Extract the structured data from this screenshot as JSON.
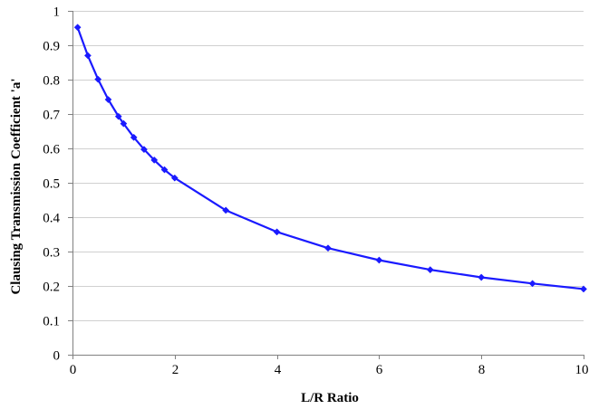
{
  "chart_data": {
    "type": "line",
    "title": "",
    "xlabel": "L/R Ratio",
    "ylabel": "Clausing Transmission Coefficient 'a'",
    "xlim": [
      0,
      10
    ],
    "ylim": [
      0,
      1
    ],
    "xticks": [
      0,
      2,
      4,
      6,
      8,
      10
    ],
    "xtick_labels": [
      "0",
      "2",
      "4",
      "6",
      "8",
      "10"
    ],
    "yticks": [
      0,
      0.1,
      0.2,
      0.3,
      0.4,
      0.5,
      0.6,
      0.7,
      0.8,
      0.9,
      1
    ],
    "ytick_labels": [
      "0",
      "0.1",
      "0.2",
      "0.3",
      "0.4",
      "0.5",
      "0.6",
      "0.7",
      "0.8",
      "0.9",
      "1"
    ],
    "grid": "horizontal",
    "legend": "none",
    "series": [
      {
        "color": "#1a1aff",
        "marker": "diamond",
        "x": [
          0.1,
          0.3,
          0.5,
          0.7,
          0.9,
          1.0,
          1.2,
          1.4,
          1.6,
          1.8,
          2.0,
          3.0,
          4.0,
          5.0,
          6.0,
          7.0,
          8.0,
          9.0,
          10.0
        ],
        "y": [
          0.952,
          0.87,
          0.801,
          0.742,
          0.693,
          0.672,
          0.632,
          0.597,
          0.566,
          0.538,
          0.514,
          0.42,
          0.357,
          0.31,
          0.275,
          0.247,
          0.225,
          0.207,
          0.191
        ]
      }
    ]
  }
}
